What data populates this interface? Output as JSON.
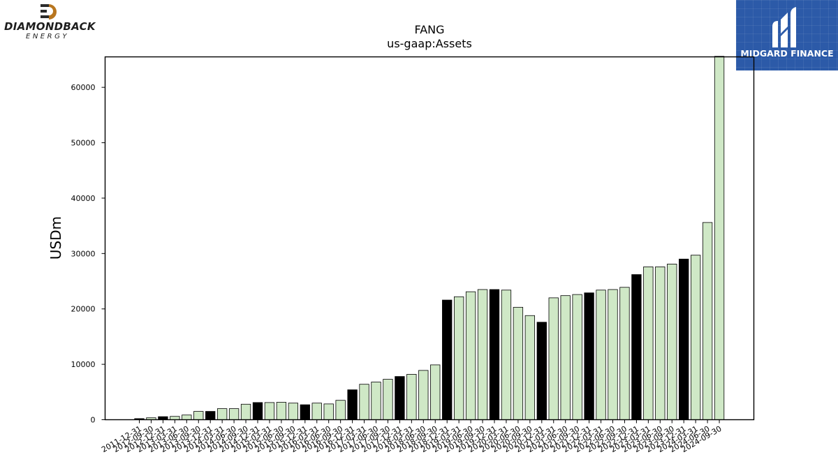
{
  "logos": {
    "left": {
      "name": "DIAMONDBACK",
      "sub": "ENERGY"
    },
    "right": {
      "name": "MIDGARD FINANCE",
      "color": "#2c5aa8"
    }
  },
  "colors": {
    "annual_bar": "#000000",
    "quarter_bar": "#cfe8c6",
    "bar_edge": "#000000"
  },
  "chart_data": {
    "type": "bar",
    "title": "FANG",
    "subtitle": "us-gaap:Assets",
    "xlabel": "",
    "ylabel": "USDm",
    "ylim": [
      0,
      65500
    ],
    "yticks": [
      0,
      10000,
      20000,
      30000,
      40000,
      50000,
      60000
    ],
    "grid": false,
    "legend": "none",
    "categories": [
      "2011-12-31",
      "2012-09-30",
      "2012-12-31",
      "2013-03-31",
      "2013-06-30",
      "2013-09-30",
      "2013-12-31",
      "2014-03-31",
      "2014-06-30",
      "2014-09-30",
      "2014-12-31",
      "2015-03-31",
      "2015-06-30",
      "2015-09-30",
      "2015-12-31",
      "2016-03-31",
      "2016-06-30",
      "2016-09-30",
      "2016-12-31",
      "2017-03-31",
      "2017-06-30",
      "2017-09-30",
      "2017-12-31",
      "2018-03-31",
      "2018-06-30",
      "2018-09-30",
      "2018-12-31",
      "2019-03-31",
      "2019-06-30",
      "2019-09-30",
      "2019-12-31",
      "2020-03-31",
      "2020-06-30",
      "2020-09-30",
      "2020-12-31",
      "2021-03-31",
      "2021-06-30",
      "2021-09-30",
      "2021-12-31",
      "2022-03-31",
      "2022-06-30",
      "2022-09-30",
      "2022-12-31",
      "2023-03-31",
      "2023-06-30",
      "2023-09-30",
      "2023-12-31",
      "2024-03-31",
      "2024-06-30",
      "2024-09-30"
    ],
    "values": [
      200,
      350,
      550,
      600,
      850,
      1500,
      1500,
      2000,
      2000,
      2800,
      3100,
      3100,
      3150,
      3000,
      2700,
      3000,
      2850,
      3500,
      5400,
      6400,
      6800,
      7300,
      7800,
      8200,
      8900,
      9900,
      21600,
      22200,
      23100,
      23500,
      23500,
      23400,
      20300,
      18800,
      17600,
      22000,
      22400,
      22600,
      22900,
      23400,
      23500,
      23900,
      26200,
      27600,
      27600,
      28100,
      29000,
      29700,
      35600,
      65600
    ],
    "period_type": [
      "annual",
      "quarter",
      "annual",
      "quarter",
      "quarter",
      "quarter",
      "annual",
      "quarter",
      "quarter",
      "quarter",
      "annual",
      "quarter",
      "quarter",
      "quarter",
      "annual",
      "quarter",
      "quarter",
      "quarter",
      "annual",
      "quarter",
      "quarter",
      "quarter",
      "annual",
      "quarter",
      "quarter",
      "quarter",
      "annual",
      "quarter",
      "quarter",
      "quarter",
      "annual",
      "quarter",
      "quarter",
      "quarter",
      "annual",
      "quarter",
      "quarter",
      "quarter",
      "annual",
      "quarter",
      "quarter",
      "quarter",
      "annual",
      "quarter",
      "quarter",
      "quarter",
      "annual",
      "quarter",
      "quarter",
      "quarter"
    ]
  }
}
